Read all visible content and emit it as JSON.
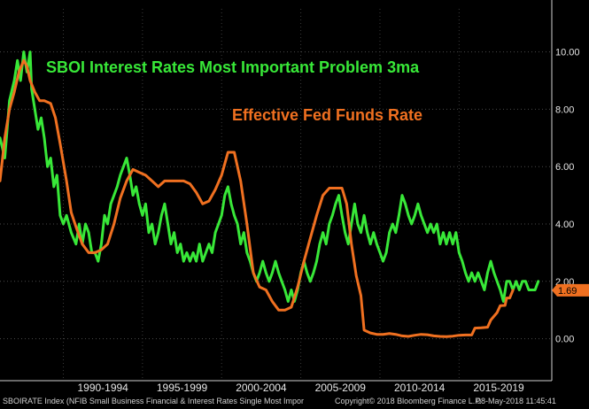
{
  "chart_data": {
    "type": "line",
    "title": "",
    "annotations": [
      {
        "text": "SBOI Interest Rates Most Important Problem 3ma",
        "color": "#38e838"
      },
      {
        "text": "Effective Fed Funds Rate",
        "color": "#f07020"
      }
    ],
    "xlabel": "",
    "ylabel": "",
    "x_tick_labels": [
      "1990-1994",
      "1995-1999",
      "2000-2004",
      "2005-2009",
      "2010-2014",
      "2015-2019"
    ],
    "y_ticks": [
      0.0,
      2.0,
      4.0,
      6.0,
      8.0,
      10.0
    ],
    "y_tick_labels": [
      "0.00",
      "2.00",
      "4.00",
      "6.00",
      "8.00",
      "10.00"
    ],
    "xlim": [
      1986.0,
      2020.8
    ],
    "ylim": [
      -1.0,
      11.5
    ],
    "grid": "dotted",
    "last_value_label": "1.69",
    "series": [
      {
        "name": "SBOI Interest Rates Most Important Problem 3ma",
        "color": "#38e838",
        "points": [
          [
            1986.0,
            7.0
          ],
          [
            1986.3,
            6.3
          ],
          [
            1986.6,
            8.3
          ],
          [
            1986.9,
            9.0
          ],
          [
            1987.1,
            9.7
          ],
          [
            1987.3,
            9.0
          ],
          [
            1987.5,
            10.0
          ],
          [
            1987.7,
            9.3
          ],
          [
            1987.9,
            10.0
          ],
          [
            1988.0,
            8.7
          ],
          [
            1988.2,
            8.0
          ],
          [
            1988.4,
            7.3
          ],
          [
            1988.6,
            7.7
          ],
          [
            1988.8,
            7.0
          ],
          [
            1989.0,
            6.0
          ],
          [
            1989.2,
            6.3
          ],
          [
            1989.4,
            5.3
          ],
          [
            1989.6,
            5.7
          ],
          [
            1989.8,
            4.3
          ],
          [
            1990.0,
            4.0
          ],
          [
            1990.2,
            4.3
          ],
          [
            1990.5,
            3.7
          ],
          [
            1990.8,
            3.3
          ],
          [
            1991.0,
            4.0
          ],
          [
            1991.2,
            3.3
          ],
          [
            1991.4,
            4.0
          ],
          [
            1991.6,
            3.7
          ],
          [
            1991.8,
            3.0
          ],
          [
            1992.0,
            3.0
          ],
          [
            1992.2,
            2.7
          ],
          [
            1992.4,
            3.3
          ],
          [
            1992.6,
            4.3
          ],
          [
            1992.8,
            4.0
          ],
          [
            1993.0,
            4.7
          ],
          [
            1993.2,
            5.0
          ],
          [
            1993.4,
            5.3
          ],
          [
            1993.6,
            5.7
          ],
          [
            1993.8,
            6.0
          ],
          [
            1994.0,
            6.3
          ],
          [
            1994.2,
            5.7
          ],
          [
            1994.4,
            5.0
          ],
          [
            1994.6,
            5.3
          ],
          [
            1994.8,
            4.7
          ],
          [
            1995.0,
            4.3
          ],
          [
            1995.2,
            4.7
          ],
          [
            1995.4,
            3.7
          ],
          [
            1995.6,
            4.0
          ],
          [
            1995.8,
            3.3
          ],
          [
            1996.0,
            3.7
          ],
          [
            1996.2,
            4.3
          ],
          [
            1996.4,
            4.7
          ],
          [
            1996.6,
            4.0
          ],
          [
            1996.8,
            3.3
          ],
          [
            1997.0,
            3.7
          ],
          [
            1997.2,
            3.0
          ],
          [
            1997.4,
            3.3
          ],
          [
            1997.6,
            2.7
          ],
          [
            1997.8,
            3.0
          ],
          [
            1998.0,
            2.7
          ],
          [
            1998.2,
            3.0
          ],
          [
            1998.4,
            2.7
          ],
          [
            1998.6,
            3.3
          ],
          [
            1998.8,
            2.7
          ],
          [
            1999.0,
            3.0
          ],
          [
            1999.2,
            3.3
          ],
          [
            1999.4,
            3.0
          ],
          [
            1999.6,
            3.7
          ],
          [
            1999.8,
            4.0
          ],
          [
            2000.0,
            4.3
          ],
          [
            2000.2,
            5.0
          ],
          [
            2000.4,
            5.3
          ],
          [
            2000.6,
            4.7
          ],
          [
            2000.8,
            4.3
          ],
          [
            2001.0,
            4.0
          ],
          [
            2001.2,
            3.3
          ],
          [
            2001.4,
            3.7
          ],
          [
            2001.6,
            3.0
          ],
          [
            2001.8,
            2.7
          ],
          [
            2002.0,
            2.3
          ],
          [
            2002.2,
            2.0
          ],
          [
            2002.4,
            2.3
          ],
          [
            2002.6,
            2.7
          ],
          [
            2002.8,
            2.3
          ],
          [
            2003.0,
            2.0
          ],
          [
            2003.2,
            2.3
          ],
          [
            2003.4,
            2.7
          ],
          [
            2003.6,
            2.3
          ],
          [
            2003.8,
            2.0
          ],
          [
            2004.0,
            1.7
          ],
          [
            2004.2,
            1.3
          ],
          [
            2004.4,
            1.7
          ],
          [
            2004.6,
            1.3
          ],
          [
            2004.8,
            1.7
          ],
          [
            2005.0,
            2.3
          ],
          [
            2005.2,
            2.7
          ],
          [
            2005.4,
            2.3
          ],
          [
            2005.6,
            2.0
          ],
          [
            2005.8,
            2.3
          ],
          [
            2006.0,
            2.7
          ],
          [
            2006.2,
            3.3
          ],
          [
            2006.4,
            3.7
          ],
          [
            2006.6,
            3.3
          ],
          [
            2006.8,
            4.0
          ],
          [
            2007.0,
            4.3
          ],
          [
            2007.2,
            4.7
          ],
          [
            2007.4,
            5.0
          ],
          [
            2007.6,
            4.3
          ],
          [
            2007.8,
            3.7
          ],
          [
            2008.0,
            3.3
          ],
          [
            2008.2,
            4.0
          ],
          [
            2008.4,
            4.7
          ],
          [
            2008.6,
            4.0
          ],
          [
            2008.8,
            3.7
          ],
          [
            2009.0,
            4.3
          ],
          [
            2009.2,
            3.7
          ],
          [
            2009.4,
            3.3
          ],
          [
            2009.6,
            3.7
          ],
          [
            2009.8,
            3.3
          ],
          [
            2010.0,
            3.0
          ],
          [
            2010.2,
            2.7
          ],
          [
            2010.4,
            3.0
          ],
          [
            2010.6,
            3.7
          ],
          [
            2010.8,
            4.0
          ],
          [
            2011.0,
            3.7
          ],
          [
            2011.2,
            4.3
          ],
          [
            2011.4,
            5.0
          ],
          [
            2011.6,
            4.7
          ],
          [
            2011.8,
            4.3
          ],
          [
            2012.0,
            4.0
          ],
          [
            2012.2,
            4.3
          ],
          [
            2012.4,
            4.7
          ],
          [
            2012.6,
            4.3
          ],
          [
            2012.8,
            4.0
          ],
          [
            2013.0,
            3.7
          ],
          [
            2013.2,
            4.0
          ],
          [
            2013.4,
            3.7
          ],
          [
            2013.6,
            4.0
          ],
          [
            2013.8,
            3.3
          ],
          [
            2014.0,
            3.7
          ],
          [
            2014.2,
            3.3
          ],
          [
            2014.4,
            3.7
          ],
          [
            2014.6,
            3.3
          ],
          [
            2014.8,
            3.7
          ],
          [
            2015.0,
            3.0
          ],
          [
            2015.2,
            2.7
          ],
          [
            2015.4,
            2.3
          ],
          [
            2015.6,
            2.0
          ],
          [
            2015.8,
            2.3
          ],
          [
            2016.0,
            2.0
          ],
          [
            2016.2,
            2.3
          ],
          [
            2016.4,
            2.0
          ],
          [
            2016.6,
            1.7
          ],
          [
            2016.8,
            2.3
          ],
          [
            2017.0,
            2.7
          ],
          [
            2017.2,
            2.3
          ],
          [
            2017.4,
            2.0
          ],
          [
            2017.6,
            1.7
          ],
          [
            2017.8,
            1.3
          ],
          [
            2018.0,
            2.0
          ],
          [
            2018.2,
            2.0
          ],
          [
            2018.4,
            1.7
          ],
          [
            2018.6,
            2.0
          ],
          [
            2018.8,
            1.7
          ],
          [
            2019.0,
            2.0
          ],
          [
            2019.2,
            2.0
          ],
          [
            2019.4,
            1.7
          ],
          [
            2019.6,
            1.7
          ],
          [
            2019.8,
            1.7
          ],
          [
            2020.0,
            2.0
          ]
        ]
      },
      {
        "name": "Effective Fed Funds Rate",
        "color": "#f07020",
        "points": [
          [
            1986.0,
            5.5
          ],
          [
            1986.3,
            7.0
          ],
          [
            1986.6,
            8.0
          ],
          [
            1986.9,
            8.6
          ],
          [
            1987.2,
            9.3
          ],
          [
            1987.5,
            9.7
          ],
          [
            1987.7,
            9.5
          ],
          [
            1987.9,
            9.0
          ],
          [
            1988.2,
            8.6
          ],
          [
            1988.5,
            8.3
          ],
          [
            1988.8,
            8.3
          ],
          [
            1989.2,
            8.2
          ],
          [
            1989.5,
            7.7
          ],
          [
            1989.8,
            6.8
          ],
          [
            1990.2,
            5.5
          ],
          [
            1990.5,
            4.4
          ],
          [
            1990.8,
            3.9
          ],
          [
            1991.2,
            3.3
          ],
          [
            1991.6,
            3.0
          ],
          [
            1992.0,
            3.0
          ],
          [
            1992.4,
            3.1
          ],
          [
            1992.8,
            3.3
          ],
          [
            1993.2,
            4.0
          ],
          [
            1993.6,
            4.9
          ],
          [
            1994.0,
            5.5
          ],
          [
            1994.4,
            5.9
          ],
          [
            1994.8,
            5.8
          ],
          [
            1995.2,
            5.7
          ],
          [
            1995.6,
            5.5
          ],
          [
            1996.0,
            5.3
          ],
          [
            1996.4,
            5.5
          ],
          [
            1996.8,
            5.5
          ],
          [
            1997.2,
            5.5
          ],
          [
            1997.6,
            5.5
          ],
          [
            1998.0,
            5.4
          ],
          [
            1998.4,
            5.1
          ],
          [
            1998.8,
            4.7
          ],
          [
            1999.2,
            4.8
          ],
          [
            1999.6,
            5.2
          ],
          [
            2000.0,
            5.7
          ],
          [
            2000.4,
            6.5
          ],
          [
            2000.8,
            6.5
          ],
          [
            2001.2,
            5.5
          ],
          [
            2001.6,
            4.0
          ],
          [
            2002.0,
            2.3
          ],
          [
            2002.4,
            1.8
          ],
          [
            2002.8,
            1.7
          ],
          [
            2003.2,
            1.3
          ],
          [
            2003.6,
            1.0
          ],
          [
            2004.0,
            1.0
          ],
          [
            2004.4,
            1.1
          ],
          [
            2004.8,
            1.8
          ],
          [
            2005.2,
            2.7
          ],
          [
            2005.6,
            3.5
          ],
          [
            2006.0,
            4.3
          ],
          [
            2006.4,
            5.0
          ],
          [
            2006.8,
            5.25
          ],
          [
            2007.2,
            5.25
          ],
          [
            2007.6,
            5.25
          ],
          [
            2007.9,
            4.7
          ],
          [
            2008.2,
            3.3
          ],
          [
            2008.5,
            2.2
          ],
          [
            2008.8,
            1.5
          ],
          [
            2009.0,
            0.3
          ],
          [
            2009.4,
            0.2
          ],
          [
            2009.8,
            0.15
          ],
          [
            2010.2,
            0.15
          ],
          [
            2010.6,
            0.18
          ],
          [
            2011.0,
            0.15
          ],
          [
            2011.4,
            0.1
          ],
          [
            2011.8,
            0.08
          ],
          [
            2012.2,
            0.12
          ],
          [
            2012.6,
            0.15
          ],
          [
            2013.0,
            0.14
          ],
          [
            2013.4,
            0.1
          ],
          [
            2013.8,
            0.08
          ],
          [
            2014.2,
            0.07
          ],
          [
            2014.6,
            0.09
          ],
          [
            2015.0,
            0.12
          ],
          [
            2015.4,
            0.13
          ],
          [
            2015.8,
            0.13
          ],
          [
            2016.0,
            0.37
          ],
          [
            2016.4,
            0.38
          ],
          [
            2016.8,
            0.4
          ],
          [
            2017.0,
            0.65
          ],
          [
            2017.4,
            0.91
          ],
          [
            2017.6,
            1.15
          ],
          [
            2017.9,
            1.16
          ],
          [
            2018.0,
            1.42
          ],
          [
            2018.2,
            1.42
          ],
          [
            2018.4,
            1.69
          ]
        ]
      }
    ]
  },
  "footer": {
    "left": "SBOIRATE Index (NFIB Small Business Financial & Interest Rates Single Most Impor",
    "middle": "Copyright© 2018 Bloomberg Finance L.P.",
    "right": "08-May-2018 11:45:41"
  }
}
